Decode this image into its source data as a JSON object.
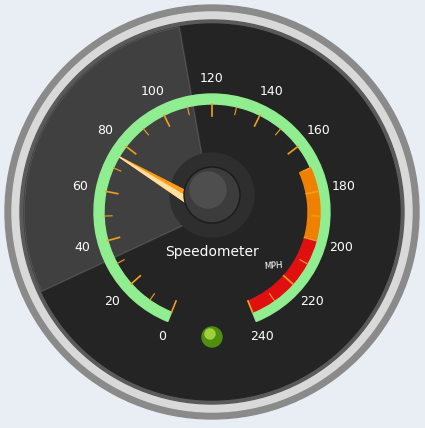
{
  "chart_data": {
    "type": "gauge",
    "title": "Speedometer",
    "unit": "MPH",
    "range": [
      0,
      240
    ],
    "ticks": [
      0,
      20,
      40,
      60,
      80,
      100,
      120,
      140,
      160,
      180,
      200,
      220,
      240
    ],
    "value": 75,
    "color": "#90ee90",
    "bands": [
      {
        "from": 170,
        "to": 200,
        "color": "#f08000"
      },
      {
        "from": 200,
        "to": 240,
        "color": "#e01010"
      }
    ]
  }
}
